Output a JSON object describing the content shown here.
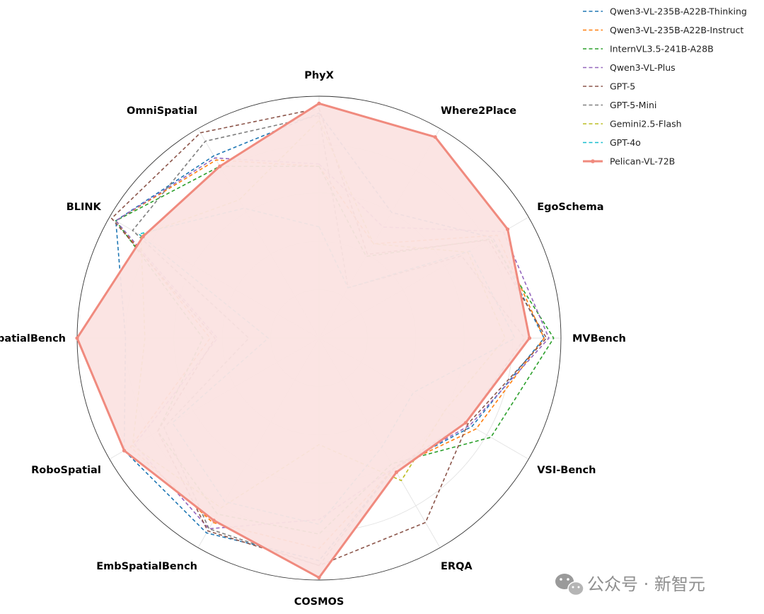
{
  "chart_data": {
    "type": "radar",
    "title": "",
    "axes": [
      "PhyX",
      "Where2Place",
      "EgoSchema",
      "MVBench",
      "VSI-Bench",
      "ERQA",
      "COSMOS",
      "EmbSpatialBench",
      "RoboSpatial",
      "RefSpatialBench",
      "BLINK",
      "OmniSpatial"
    ],
    "range": [
      0,
      1
    ],
    "grid": true,
    "legend_position": "top-right",
    "series": [
      {
        "name": "Qwen3-VL-235B-A22B-Thinking",
        "style": "dashed",
        "color": "#1f77b4",
        "values": [
          0.93,
          0.6,
          0.83,
          0.93,
          0.73,
          0.62,
          0.92,
          0.93,
          0.93,
          0.8,
          0.97,
          0.87
        ]
      },
      {
        "name": "Qwen3-VL-235B-A22B-Instruct",
        "style": "dashed",
        "color": "#ff7f0e",
        "values": [
          0.71,
          0.45,
          0.85,
          0.93,
          0.75,
          0.62,
          0.87,
          0.88,
          0.9,
          0.45,
          0.97,
          0.85
        ]
      },
      {
        "name": "InternVL3.5-241B-A28B",
        "style": "dashed",
        "color": "#2ca02c",
        "values": [
          0.71,
          0.39,
          0.82,
          0.97,
          0.82,
          0.6,
          0.81,
          0.84,
          0.77,
          0.48,
          0.97,
          0.82
        ]
      },
      {
        "name": "Qwen3-VL-Plus",
        "style": "dashed",
        "color": "#9467bd",
        "values": [
          0.72,
          0.53,
          0.88,
          0.95,
          0.72,
          0.62,
          0.75,
          0.91,
          0.88,
          0.42,
          0.97,
          0.86
        ]
      },
      {
        "name": "GPT-5",
        "style": "dashed",
        "color": "#8c564b",
        "values": [
          0.95,
          0.4,
          0.81,
          0.94,
          0.71,
          0.88,
          0.94,
          0.92,
          0.77,
          0.43,
          0.99,
          0.98
        ]
      },
      {
        "name": "GPT-5-Mini",
        "style": "dashed",
        "color": "#7f7f7f",
        "values": [
          0.92,
          0.24,
          0.68,
          0.85,
          0.7,
          0.62,
          0.94,
          0.91,
          0.74,
          0.29,
          0.89,
          0.94
        ]
      },
      {
        "name": "Gemini2.5-Flash",
        "style": "dashed",
        "color": "#bcbd22",
        "values": [
          0.9,
          0.45,
          0.71,
          0.77,
          0.6,
          0.68,
          0.44,
          0.81,
          0.89,
          0.72,
          0.85,
          0.66
        ]
      },
      {
        "name": "GPT-4o",
        "style": "dashed",
        "color": "#17becf",
        "values": [
          0.46,
          0.24,
          0.72,
          0.81,
          0.45,
          0.52,
          0.77,
          0.78,
          0.7,
          0.21,
          0.86,
          0.62
        ]
      },
      {
        "name": "Pelican-VL-72B",
        "style": "solid",
        "color": "#f08a7e",
        "fill": "#fbe3e1",
        "values": [
          0.97,
          0.96,
          0.9,
          0.87,
          0.7,
          0.64,
          0.99,
          0.87,
          0.93,
          1.0,
          0.84,
          0.82
        ]
      }
    ]
  },
  "watermark": {
    "text": "公众号 · 新智元",
    "icon": "wechat-icon"
  }
}
